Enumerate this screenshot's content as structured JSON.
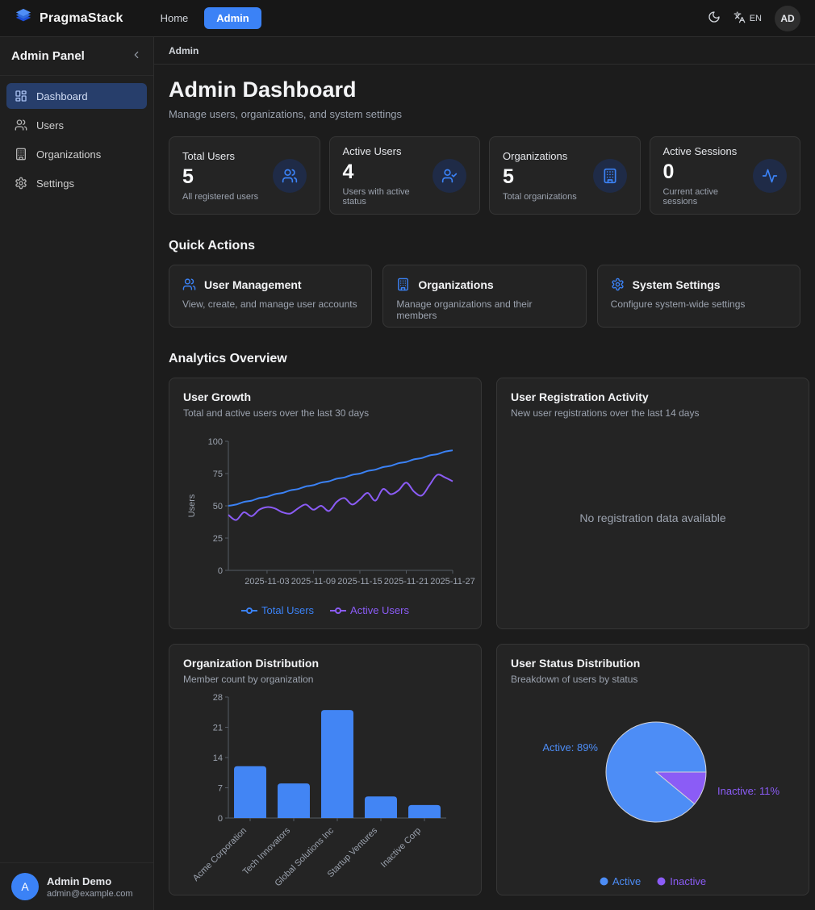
{
  "navbar": {
    "brand": "PragmaStack",
    "links": [
      {
        "label": "Home",
        "active": false
      },
      {
        "label": "Admin",
        "active": true
      }
    ],
    "language": "EN",
    "avatar": "AD"
  },
  "sidebar": {
    "title": "Admin Panel",
    "collapse_icon": "chevron-left-icon",
    "items": [
      {
        "label": "Dashboard",
        "icon": "dashboard-icon",
        "active": true
      },
      {
        "label": "Users",
        "icon": "users-icon",
        "active": false
      },
      {
        "label": "Organizations",
        "icon": "building-icon",
        "active": false
      },
      {
        "label": "Settings",
        "icon": "settings-icon",
        "active": false
      }
    ],
    "user": {
      "initial": "A",
      "name": "Admin Demo",
      "email": "admin@example.com"
    }
  },
  "breadcrumb": "Admin",
  "header": {
    "title": "Admin Dashboard",
    "subtitle": "Manage users, organizations, and system settings"
  },
  "stats": [
    {
      "label": "Total Users",
      "value": "5",
      "description": "All registered users",
      "icon": "users-icon"
    },
    {
      "label": "Active Users",
      "value": "4",
      "description": "Users with active status",
      "icon": "user-check-icon"
    },
    {
      "label": "Organizations",
      "value": "5",
      "description": "Total organizations",
      "icon": "building-icon"
    },
    {
      "label": "Active Sessions",
      "value": "0",
      "description": "Current active sessions",
      "icon": "activity-icon"
    }
  ],
  "quick_actions": {
    "title": "Quick Actions",
    "cards": [
      {
        "title": "User Management",
        "description": "View, create, and manage user accounts",
        "icon": "users-icon"
      },
      {
        "title": "Organizations",
        "description": "Manage organizations and their members",
        "icon": "building-icon"
      },
      {
        "title": "System Settings",
        "description": "Configure system-wide settings",
        "icon": "settings-icon"
      }
    ]
  },
  "analytics": {
    "title": "Analytics Overview"
  },
  "colors": {
    "accent_blue": "#3b82f6",
    "chart_blue": "#4285f4",
    "chart_purple": "#8b5cf6",
    "axis_gray": "#9ca3af"
  },
  "chart_data": [
    {
      "type": "line",
      "title": "User Growth",
      "subtitle": "Total and active users over the last 30 days",
      "ylabel": "Users",
      "ylim": [
        0,
        100
      ],
      "yticks": [
        0,
        25,
        50,
        75,
        100
      ],
      "x": [
        "2025-10-29",
        "2025-10-30",
        "2025-10-31",
        "2025-11-01",
        "2025-11-02",
        "2025-11-03",
        "2025-11-04",
        "2025-11-05",
        "2025-11-06",
        "2025-11-07",
        "2025-11-08",
        "2025-11-09",
        "2025-11-10",
        "2025-11-11",
        "2025-11-12",
        "2025-11-13",
        "2025-11-14",
        "2025-11-15",
        "2025-11-16",
        "2025-11-17",
        "2025-11-18",
        "2025-11-19",
        "2025-11-20",
        "2025-11-21",
        "2025-11-22",
        "2025-11-23",
        "2025-11-24",
        "2025-11-25",
        "2025-11-26",
        "2025-11-27"
      ],
      "xticks": [
        "2025-11-03",
        "2025-11-09",
        "2025-11-15",
        "2025-11-21",
        "2025-11-27"
      ],
      "series": [
        {
          "name": "Total Users",
          "color": "#3b82f6",
          "values": [
            50,
            51,
            53,
            54,
            56,
            57,
            59,
            60,
            62,
            63,
            65,
            66,
            68,
            69,
            71,
            72,
            74,
            75,
            77,
            78,
            80,
            81,
            83,
            84,
            86,
            87,
            89,
            90,
            92,
            93
          ]
        },
        {
          "name": "Active Users",
          "color": "#8b5cf6",
          "values": [
            43,
            39,
            45,
            42,
            47,
            49,
            48,
            45,
            44,
            48,
            51,
            47,
            50,
            46,
            53,
            56,
            51,
            55,
            60,
            54,
            63,
            59,
            62,
            68,
            61,
            58,
            66,
            74,
            72,
            69
          ]
        }
      ],
      "legend_position": "bottom"
    },
    {
      "type": "bar",
      "title": "User Registration Activity",
      "subtitle": "New user registrations over the last 14 days",
      "empty": true,
      "empty_message": "No registration data available",
      "categories": [],
      "values": []
    },
    {
      "type": "bar",
      "title": "Organization Distribution",
      "subtitle": "Member count by organization",
      "ylim": [
        0,
        28
      ],
      "yticks": [
        0,
        7,
        14,
        21,
        28
      ],
      "categories": [
        "Acme Corporation",
        "Tech Innovators",
        "Global Solutions Inc",
        "Startup Ventures",
        "Inactive Corp"
      ],
      "values": [
        12,
        8,
        25,
        5,
        3
      ],
      "color": "#4285f4"
    },
    {
      "type": "pie",
      "title": "User Status Distribution",
      "subtitle": "Breakdown of users by status",
      "slices": [
        {
          "label": "Active",
          "pct": 89,
          "color": "#4d8df6",
          "callout": "Active: 89%"
        },
        {
          "label": "Inactive",
          "pct": 11,
          "color": "#8b5cf6",
          "callout": "Inactive: 11%"
        }
      ],
      "legend_position": "bottom"
    }
  ]
}
